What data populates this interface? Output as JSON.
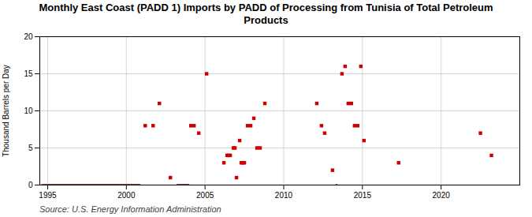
{
  "chart_data": {
    "type": "scatter",
    "title": "Monthly East Coast (PADD 1) Imports by PADD of Processing from Tunisia of Total Petroleum\nProducts",
    "ylabel": "Thousand Barrels per Day",
    "source": "Source: U.S. Energy Information Administration",
    "xlim": [
      1994.5,
      2025
    ],
    "ylim": [
      0,
      20
    ],
    "xticks": [
      1995,
      2000,
      2005,
      2010,
      2015,
      2020
    ],
    "yticks": [
      0,
      5,
      10,
      15,
      20
    ],
    "grid": true,
    "series": [
      {
        "type": "line",
        "color": "#8b0000",
        "line_style": "solid",
        "x": [
          1994.6,
          2000.9,
          null,
          2003.2,
          2004.0,
          null,
          2013.3,
          2013.4
        ],
        "values": [
          0,
          0,
          null,
          0,
          0,
          null,
          0,
          0
        ]
      },
      {
        "type": "scatter",
        "color": "#cc0000",
        "marker": "square",
        "x": [
          2001.2,
          2001.7,
          2002.1,
          2002.8,
          2004.1,
          2004.3,
          2004.6,
          2005.1,
          2006.2,
          2006.4,
          2006.5,
          2006.6,
          2006.8,
          2006.9,
          2007.0,
          2007.2,
          2007.3,
          2007.4,
          2007.5,
          2007.7,
          2007.9,
          2008.1,
          2008.3,
          2008.5,
          2008.8,
          2012.1,
          2012.4,
          2012.6,
          2013.1,
          2013.7,
          2013.9,
          2014.1,
          2014.3,
          2014.5,
          2014.7,
          2014.9,
          2015.1,
          2017.3,
          2022.5,
          2023.2
        ],
        "values": [
          8,
          8,
          11,
          1,
          8,
          8,
          7,
          15,
          3,
          4,
          4,
          4,
          5,
          5,
          1,
          6,
          3,
          3,
          3,
          8,
          8,
          9,
          5,
          5,
          11,
          11,
          8,
          7,
          2,
          15,
          16,
          11,
          11,
          8,
          8,
          16,
          6,
          3,
          7,
          4
        ]
      }
    ]
  }
}
